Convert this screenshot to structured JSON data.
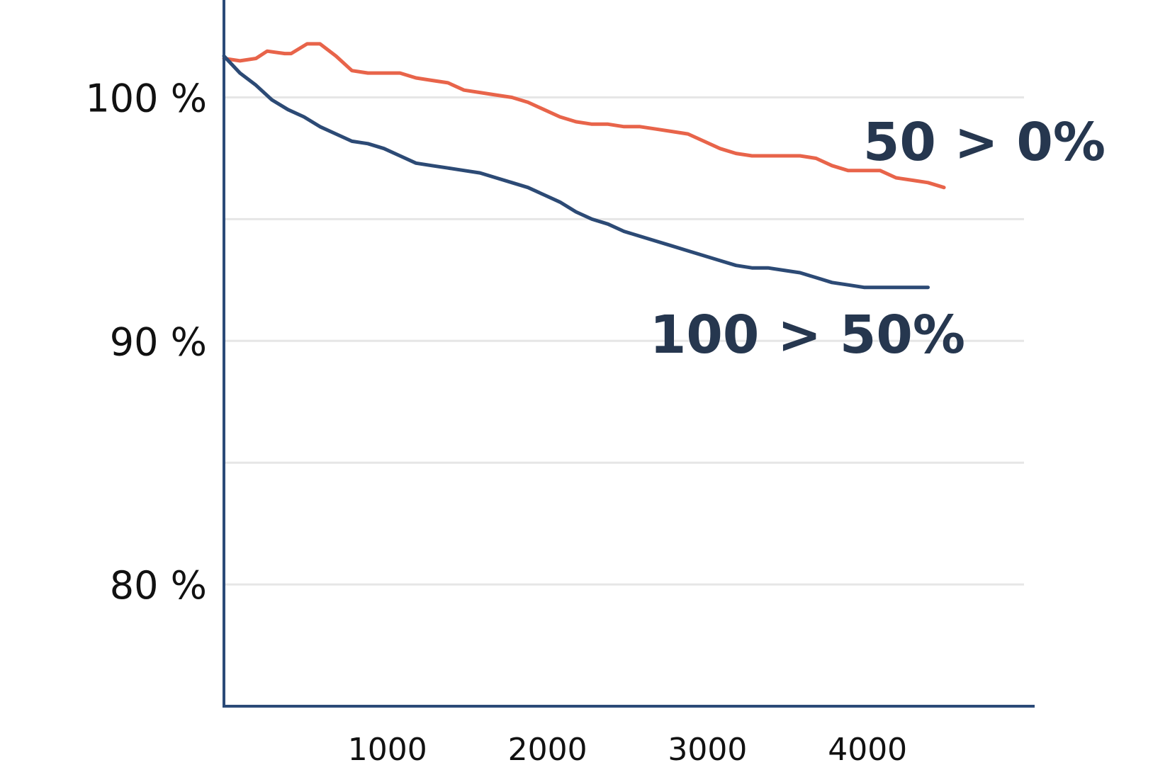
{
  "chart_data": {
    "type": "line",
    "ylim": [
      75,
      104
    ],
    "xlim": [
      0,
      5000
    ],
    "y_ticks": [
      {
        "value": 80,
        "label": "80 %"
      },
      {
        "value": 90,
        "label": "90 %"
      },
      {
        "value": 100,
        "label": "100 %"
      }
    ],
    "y_gridlines": [
      80,
      85,
      90,
      95,
      100
    ],
    "x_ticks": [
      {
        "value": 1000,
        "label": "1000"
      },
      {
        "value": 2000,
        "label": "2000"
      },
      {
        "value": 3000,
        "label": "3000"
      },
      {
        "value": 4000,
        "label": "4000"
      }
    ],
    "grid": true,
    "colors": {
      "axis": "#2b4a78",
      "grid": "#e6e6e6",
      "label_text": "#26374f"
    },
    "series": [
      {
        "name": "50 > 0%",
        "color": "#e8644a",
        "x": [
          0,
          100,
          200,
          270,
          380,
          420,
          520,
          600,
          700,
          800,
          900,
          1000,
          1100,
          1200,
          1300,
          1400,
          1500,
          1600,
          1700,
          1800,
          1900,
          2000,
          2100,
          2200,
          2300,
          2400,
          2500,
          2600,
          2700,
          2800,
          2900,
          3000,
          3100,
          3200,
          3300,
          3400,
          3500,
          3600,
          3700,
          3800,
          3900,
          4000,
          4100,
          4200,
          4300,
          4400,
          4500
        ],
        "values": [
          101.6,
          101.5,
          101.6,
          101.9,
          101.8,
          101.8,
          102.2,
          102.2,
          101.7,
          101.1,
          101.0,
          101.0,
          101.0,
          100.8,
          100.7,
          100.6,
          100.3,
          100.2,
          100.1,
          100.0,
          99.8,
          99.5,
          99.2,
          99.0,
          98.9,
          98.9,
          98.8,
          98.8,
          98.7,
          98.6,
          98.5,
          98.2,
          97.9,
          97.7,
          97.6,
          97.6,
          97.6,
          97.6,
          97.5,
          97.2,
          97.0,
          97.0,
          97.0,
          96.7,
          96.6,
          96.5,
          96.3
        ]
      },
      {
        "name": "100 > 50%",
        "color": "#2c4a75",
        "x": [
          0,
          100,
          200,
          300,
          400,
          500,
          600,
          700,
          800,
          900,
          1000,
          1100,
          1200,
          1300,
          1400,
          1500,
          1600,
          1700,
          1800,
          1900,
          2000,
          2100,
          2200,
          2300,
          2400,
          2500,
          2600,
          2700,
          2800,
          2900,
          3000,
          3100,
          3200,
          3300,
          3400,
          3500,
          3600,
          3700,
          3800,
          3900,
          4000,
          4100,
          4200,
          4300,
          4400
        ],
        "values": [
          101.7,
          101.0,
          100.5,
          99.9,
          99.5,
          99.2,
          98.8,
          98.5,
          98.2,
          98.1,
          97.9,
          97.6,
          97.3,
          97.2,
          97.1,
          97.0,
          96.9,
          96.7,
          96.5,
          96.3,
          96.0,
          95.7,
          95.3,
          95.0,
          94.8,
          94.5,
          94.3,
          94.1,
          93.9,
          93.7,
          93.5,
          93.3,
          93.1,
          93.0,
          93.0,
          92.9,
          92.8,
          92.6,
          92.4,
          92.3,
          92.2,
          92.2,
          92.2,
          92.2,
          92.2
        ]
      }
    ]
  }
}
